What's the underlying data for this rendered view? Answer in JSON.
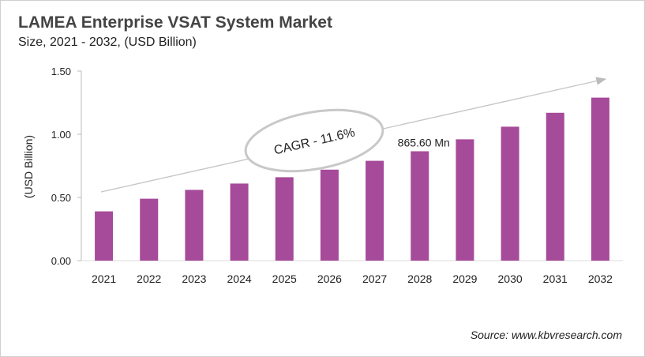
{
  "chart_data": {
    "type": "bar",
    "title": "LAMEA Enterprise VSAT System Market",
    "subtitle": "Size, 2021 - 2032, (USD Billion)",
    "xlabel": "",
    "ylabel": "(USD Billion)",
    "ylim": [
      0,
      1.5
    ],
    "yticks": [
      "0.00",
      "0.50",
      "1.00",
      "1.50"
    ],
    "categories": [
      "2021",
      "2022",
      "2023",
      "2024",
      "2025",
      "2026",
      "2027",
      "2028",
      "2029",
      "2030",
      "2031",
      "2032"
    ],
    "values": [
      0.39,
      0.49,
      0.56,
      0.61,
      0.66,
      0.72,
      0.79,
      0.8656,
      0.96,
      1.06,
      1.17,
      1.29
    ],
    "bar_color": "#a64a9a",
    "grid": false,
    "annotations": {
      "cagr": "CAGR - 11.6%",
      "data_label": "865.60 Mn",
      "data_label_category": "2028"
    },
    "source": "Source: www.kbvresearch.com"
  }
}
